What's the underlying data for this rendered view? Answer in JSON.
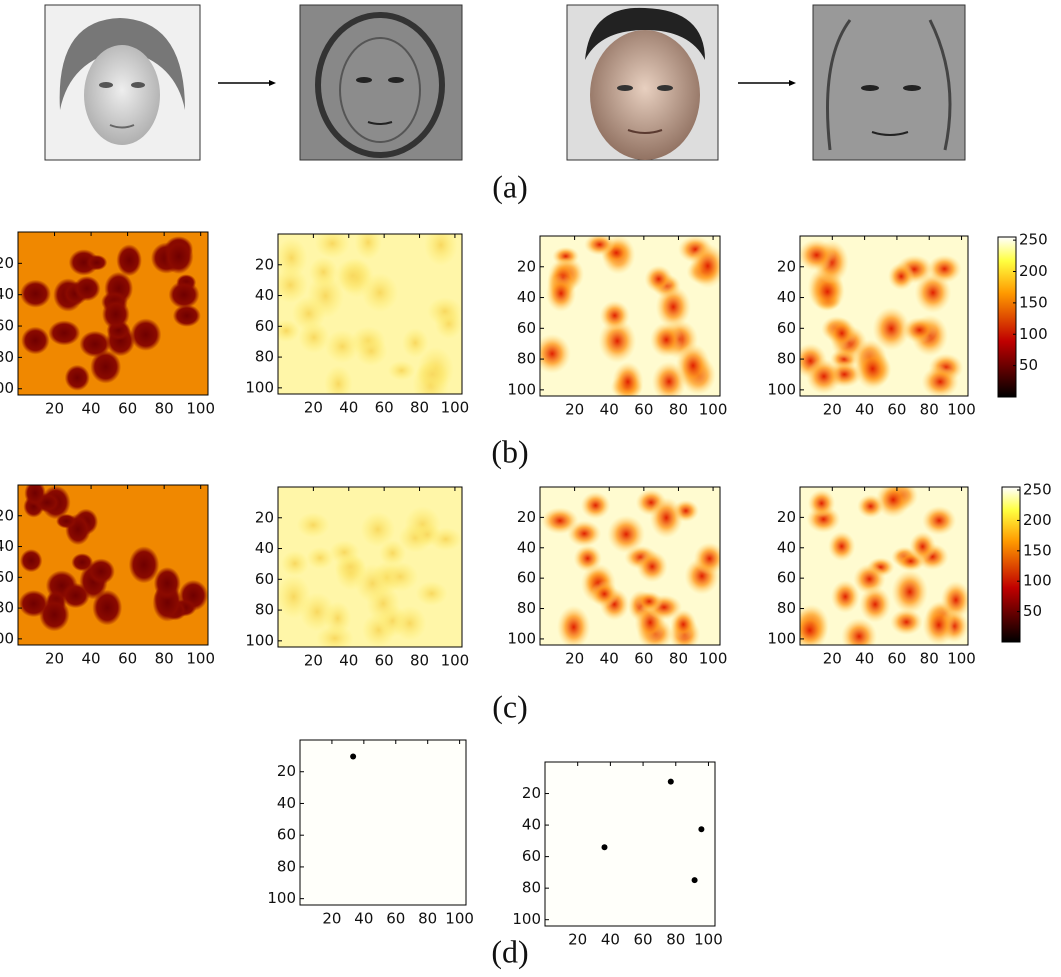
{
  "figure": {
    "captions": [
      "(a)",
      "(b)",
      "(c)",
      "(d)"
    ],
    "axes": {
      "lim": [
        0,
        104
      ],
      "ticks": [
        20,
        40,
        60,
        80,
        100
      ]
    },
    "colorbar": {
      "lim": [
        0,
        255
      ],
      "ticks": [
        50,
        100,
        150,
        200,
        250
      ]
    }
  }
}
